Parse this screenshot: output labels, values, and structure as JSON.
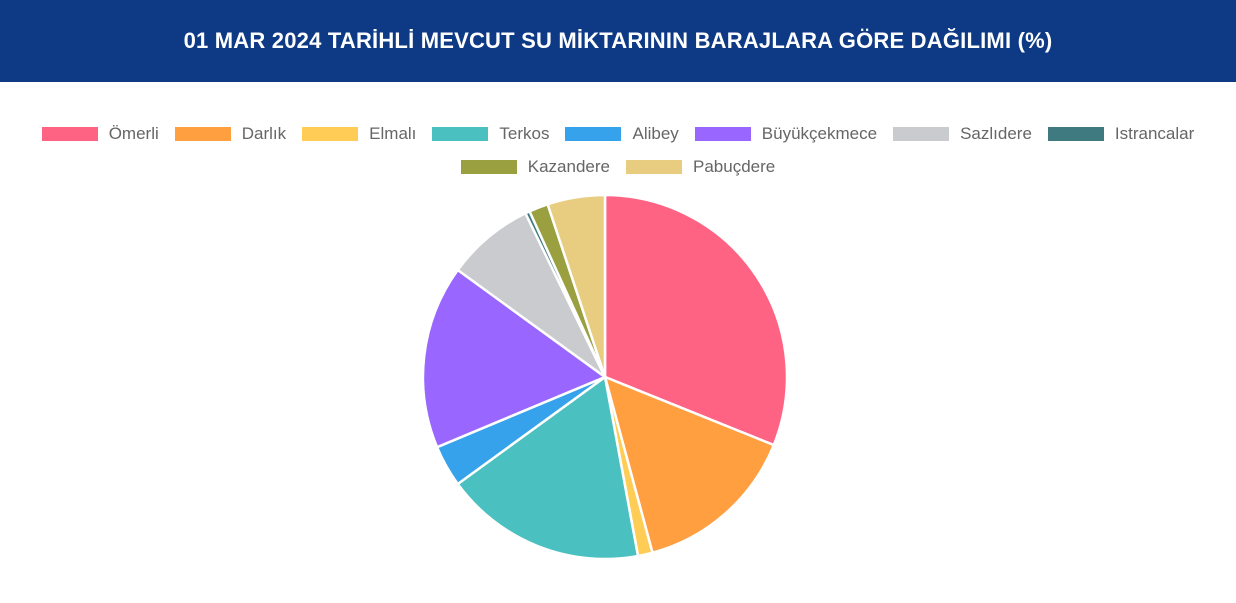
{
  "chart_data": {
    "type": "pie",
    "title": "01 MAR 2024 TARİHLİ MEVCUT SU MİKTARININ BARAJLARA GÖRE DAĞILIMI (%)",
    "categories": [
      "Ömerli",
      "Darlık",
      "Elmalı",
      "Terkos",
      "Alibey",
      "Büyükçekmece",
      "Sazlıdere",
      "Istrancalar",
      "Kazandere",
      "Pabuçdere"
    ],
    "values": [
      31.1,
      14.7,
      1.3,
      17.9,
      3.7,
      16.3,
      7.8,
      0.4,
      1.7,
      5.1
    ],
    "colors": [
      "#ff6384",
      "#ff9f40",
      "#ffcd56",
      "#4bc0c0",
      "#36a2eb",
      "#9966ff",
      "#c9cbcf",
      "#3e7a80",
      "#9aa040",
      "#e8cd80"
    ],
    "legend": "top"
  }
}
